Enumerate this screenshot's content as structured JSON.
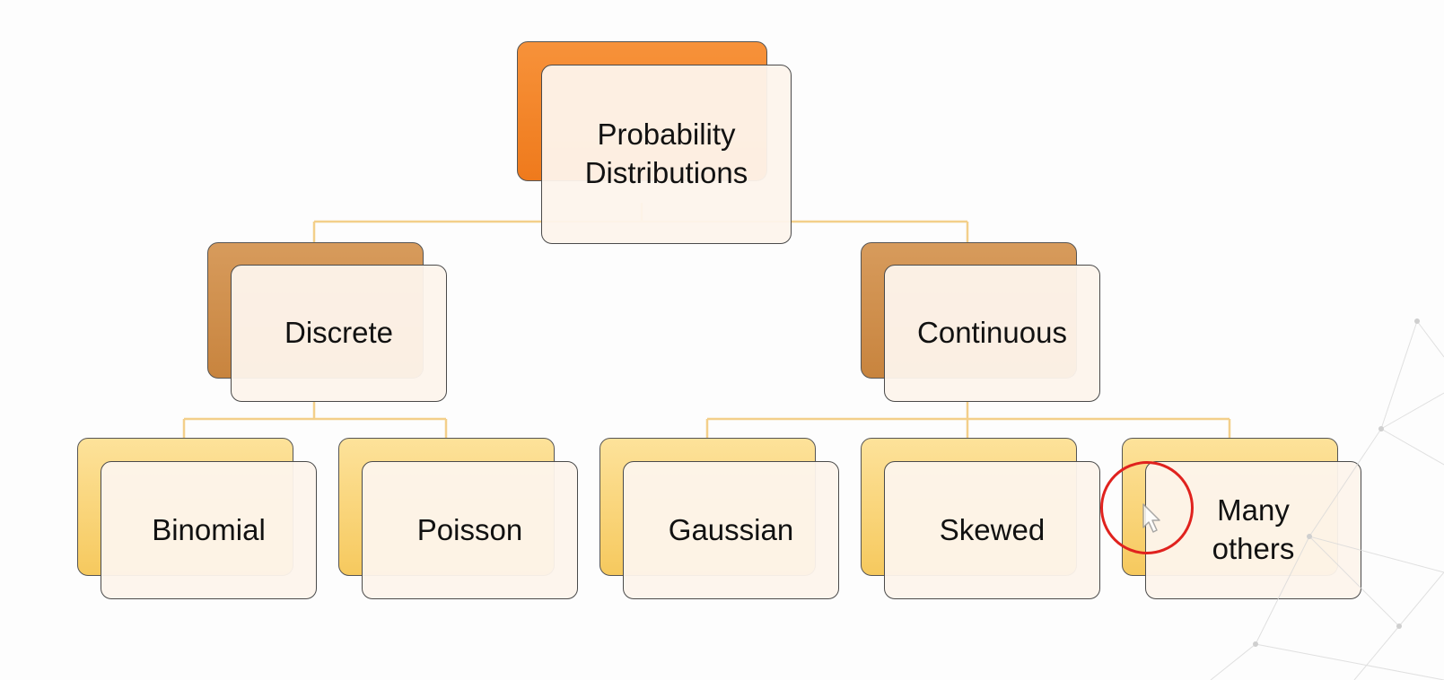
{
  "diagram": {
    "root": {
      "label": "Probability\nDistributions"
    },
    "categories": [
      {
        "label": "Discrete",
        "children": [
          {
            "label": "Binomial"
          },
          {
            "label": "Poisson"
          }
        ]
      },
      {
        "label": "Continuous",
        "children": [
          {
            "label": "Gaussian"
          },
          {
            "label": "Skewed"
          },
          {
            "label": "Many\nothers"
          }
        ]
      }
    ]
  },
  "colors": {
    "root_fill": "#f28428",
    "category_fill": "#cf8f4d",
    "leaf_fill": "#f9d57a",
    "connector": "#f3cf8a",
    "cursor_highlight": "#e0221e"
  }
}
